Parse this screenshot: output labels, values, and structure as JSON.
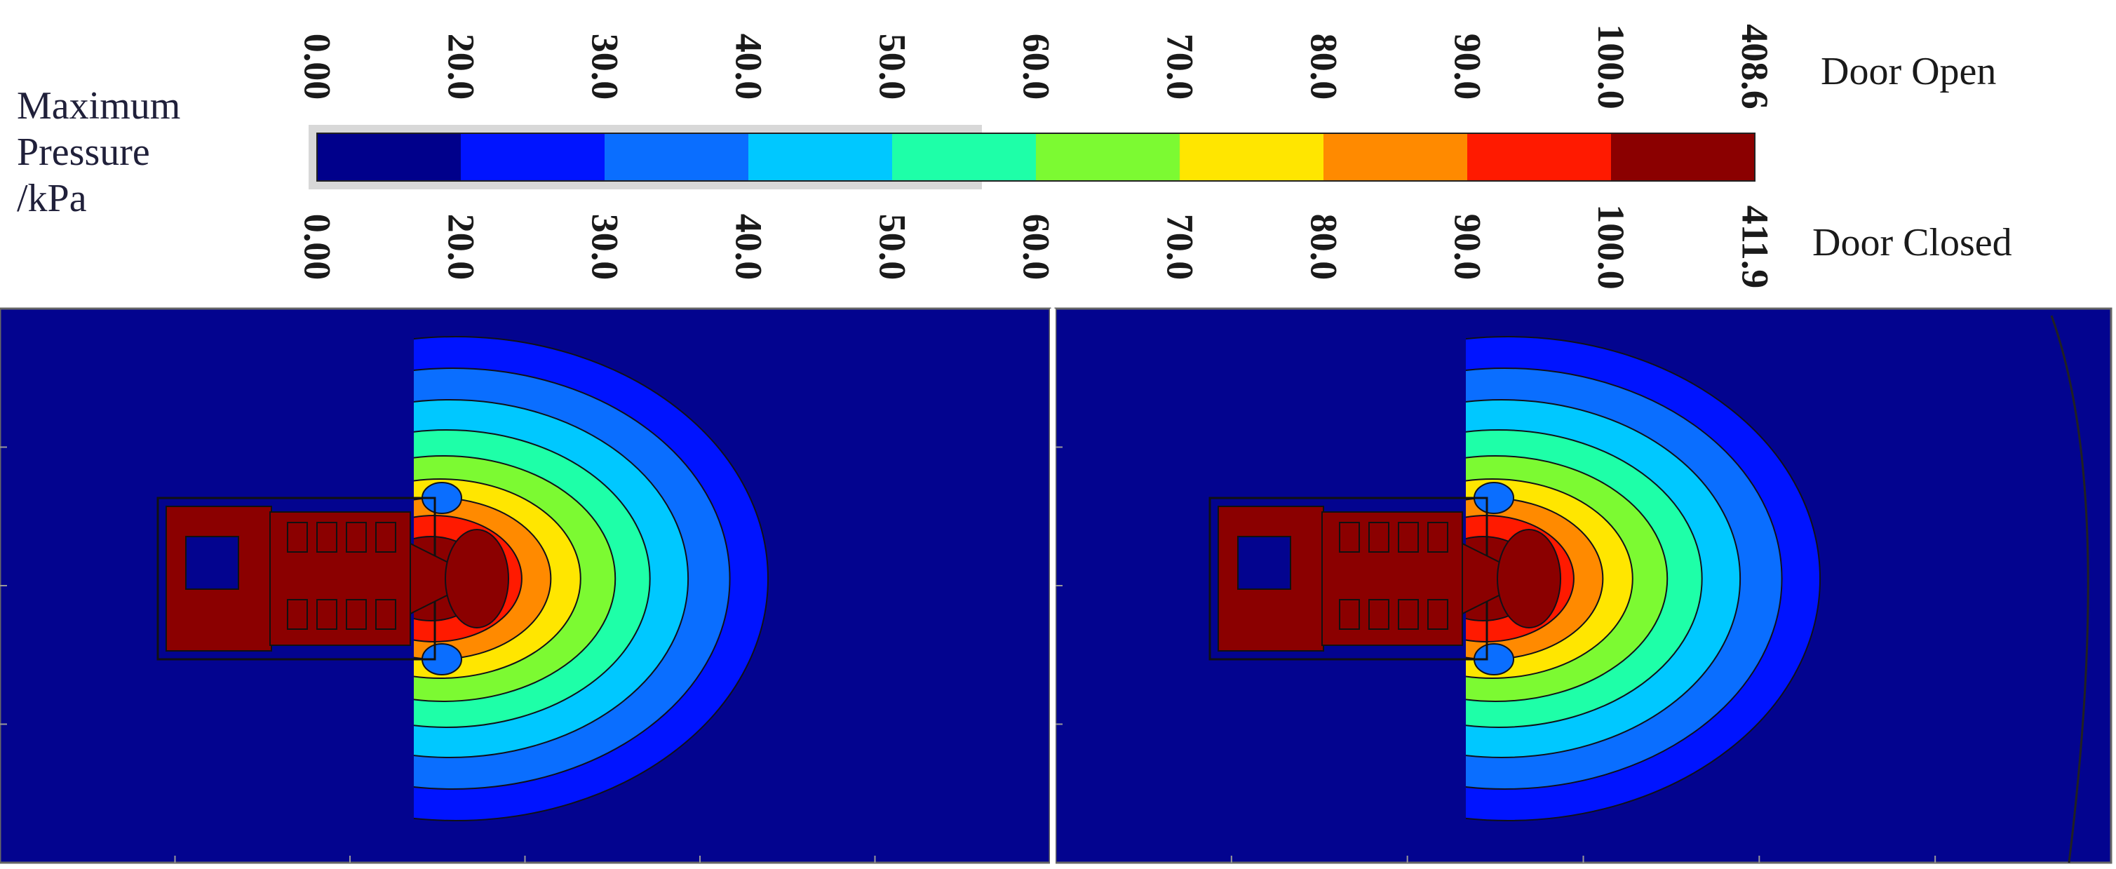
{
  "legend": {
    "title_lines": [
      "Maximum",
      "Pressure",
      "/kPa"
    ],
    "door_open_label": "Door Open",
    "door_closed_label": "Door Closed",
    "band_colors": [
      "#00008b",
      "#0014ff",
      "#0a6eff",
      "#00c8ff",
      "#1effa8",
      "#7cfa32",
      "#ffe600",
      "#ff8a00",
      "#ff1a00",
      "#8b0000"
    ],
    "door_open_ticks": [
      "0.00",
      "20.0",
      "30.0",
      "40.0",
      "50.0",
      "60.0",
      "70.0",
      "80.0",
      "90.0",
      "100.0",
      "408.6"
    ],
    "door_closed_ticks": [
      "0.00",
      "20.0",
      "30.0",
      "40.0",
      "50.0",
      "60.0",
      "70.0",
      "80.0",
      "90.0",
      "100.0",
      "411.9"
    ]
  },
  "panels": [
    {
      "name": "door-open-contour-panel"
    },
    {
      "name": "door-closed-contour-panel"
    }
  ],
  "colors": {
    "background": "#03048f",
    "structure": "#8b0000",
    "contour_line": "#101018",
    "divider": "#ffffff"
  }
}
